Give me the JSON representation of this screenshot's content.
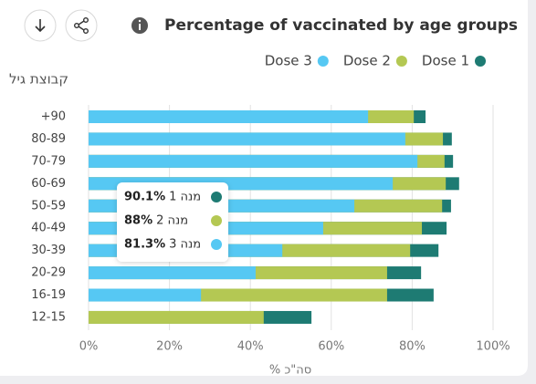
{
  "chart_data": {
    "type": "overlap-bar",
    "title": "Percentage of vaccinated by age groups",
    "y_axis_label": "קבוצת גיל",
    "x_axis_label": "% סה\"כ",
    "categories": [
      "+90",
      "80-89",
      "70-79",
      "60-69",
      "50-59",
      "40-49",
      "30-39",
      "20-29",
      "16-19",
      "12-15"
    ],
    "series": [
      {
        "name": "Dose 1",
        "color": "#1e7b73",
        "values": [
          83.3,
          89.8,
          90.1,
          91.6,
          89.6,
          88.5,
          86.5,
          82.2,
          85.3,
          55.1
        ]
      },
      {
        "name": "Dose 2",
        "color": "#b4c853",
        "values": [
          80.4,
          87.6,
          88,
          88.3,
          87.4,
          82.4,
          79.5,
          73.8,
          73.8,
          43.3
        ]
      },
      {
        "name": "Dose 3",
        "color": "#56c8f3",
        "values": [
          69.1,
          78.3,
          81.3,
          75.2,
          65.7,
          58,
          47.9,
          41.3,
          27.8,
          0
        ]
      }
    ],
    "xlim": [
      0,
      100
    ],
    "xticks": [
      {
        "value": 0,
        "label": "0%"
      },
      {
        "value": 20,
        "label": "20%"
      },
      {
        "value": 40,
        "label": "40%"
      },
      {
        "value": 60,
        "label": "60%"
      },
      {
        "value": 80,
        "label": "80%"
      },
      {
        "value": 100,
        "label": "100%"
      }
    ],
    "grid": true,
    "tooltip": {
      "items": [
        {
          "label": "מנה 1",
          "value": "90.1%"
        },
        {
          "label": "מנה 2",
          "value": "88%"
        },
        {
          "label": "מנה 3",
          "value": "81.3%"
        }
      ]
    }
  }
}
